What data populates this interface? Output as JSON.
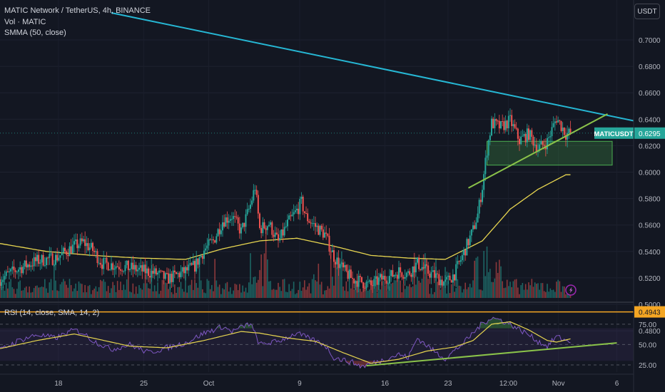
{
  "legend": {
    "title": "MATIC Network / TetherUS, 4h, BINANCE",
    "volume": "Vol · MATIC",
    "smma": "SMMA (50, close)",
    "rsi": "RSI (14, close, SMA, 14, 2)"
  },
  "currency_button": "USDT",
  "colors": {
    "background": "#131722",
    "up": "#26a69a",
    "down": "#ef5350",
    "smma": "#e8d650",
    "trendline_top": "#26b7d4",
    "trendline_support": "#8bc34a",
    "horizontal_level": "#f5a623",
    "rsi": "#7e57c2",
    "rsi_ma": "#e8d650",
    "zone": "#4caf50"
  },
  "chart_data": {
    "type": "candlestick",
    "symbol": "MATICUSDT",
    "interval": "4h",
    "price_axis": {
      "ticks": [
        "0.7000",
        "0.6800",
        "0.6600",
        "0.6400",
        "0.6200",
        "0.6000",
        "0.5800",
        "0.5600",
        "0.5400",
        "0.5200",
        "0.5000",
        "0.4800"
      ],
      "range": [
        0.476,
        0.722
      ]
    },
    "time_axis": {
      "ticks": [
        "18",
        "25",
        "Oct",
        "9",
        "16",
        "23",
        "12:00",
        "Nov",
        "6"
      ]
    },
    "price_keypoints": [
      {
        "day": 0,
        "price": 0.519
      },
      {
        "day": 2,
        "price": 0.527
      },
      {
        "day": 4,
        "price": 0.533
      },
      {
        "day": 6,
        "price": 0.535
      },
      {
        "day": 8,
        "price": 0.544
      },
      {
        "day": 9,
        "price": 0.547
      },
      {
        "day": 10,
        "price": 0.541
      },
      {
        "day": 11,
        "price": 0.531
      },
      {
        "day": 13,
        "price": 0.529
      },
      {
        "day": 15,
        "price": 0.526
      },
      {
        "day": 17,
        "price": 0.523
      },
      {
        "day": 18,
        "price": 0.519
      },
      {
        "day": 20,
        "price": 0.525
      },
      {
        "day": 21,
        "price": 0.529
      },
      {
        "day": 22,
        "price": 0.541
      },
      {
        "day": 23,
        "price": 0.548
      },
      {
        "day": 24,
        "price": 0.563
      },
      {
        "day": 25,
        "price": 0.567
      },
      {
        "day": 26,
        "price": 0.555
      },
      {
        "day": 27,
        "price": 0.575
      },
      {
        "day": 27.5,
        "price": 0.589
      },
      {
        "day": 28,
        "price": 0.557
      },
      {
        "day": 29,
        "price": 0.561
      },
      {
        "day": 30,
        "price": 0.547
      },
      {
        "day": 31,
        "price": 0.561
      },
      {
        "day": 32,
        "price": 0.571
      },
      {
        "day": 32.5,
        "price": 0.577
      },
      {
        "day": 33,
        "price": 0.566
      },
      {
        "day": 34,
        "price": 0.559
      },
      {
        "day": 35,
        "price": 0.553
      },
      {
        "day": 36,
        "price": 0.536
      },
      {
        "day": 37,
        "price": 0.526
      },
      {
        "day": 38,
        "price": 0.519
      },
      {
        "day": 39,
        "price": 0.517
      },
      {
        "day": 40,
        "price": 0.514
      },
      {
        "day": 41,
        "price": 0.519
      },
      {
        "day": 42,
        "price": 0.521
      },
      {
        "day": 43,
        "price": 0.525
      },
      {
        "day": 44,
        "price": 0.523
      },
      {
        "day": 45,
        "price": 0.531
      },
      {
        "day": 46,
        "price": 0.525
      },
      {
        "day": 47,
        "price": 0.521
      },
      {
        "day": 48,
        "price": 0.516
      },
      {
        "day": 49,
        "price": 0.523
      },
      {
        "day": 50,
        "price": 0.539
      },
      {
        "day": 51,
        "price": 0.556
      },
      {
        "day": 51.5,
        "price": 0.568
      },
      {
        "day": 52,
        "price": 0.589
      },
      {
        "day": 52.5,
        "price": 0.617
      },
      {
        "day": 53,
        "price": 0.637
      },
      {
        "day": 54,
        "price": 0.634
      },
      {
        "day": 55,
        "price": 0.639
      },
      {
        "day": 56,
        "price": 0.624
      },
      {
        "day": 57,
        "price": 0.629
      },
      {
        "day": 58,
        "price": 0.618
      },
      {
        "day": 59,
        "price": 0.623
      },
      {
        "day": 60,
        "price": 0.641
      },
      {
        "day": 61,
        "price": 0.629
      },
      {
        "day": 61.5,
        "price": 0.6295
      }
    ],
    "smma_keypoints": [
      {
        "day": 0,
        "price": 0.546
      },
      {
        "day": 5,
        "price": 0.54
      },
      {
        "day": 10,
        "price": 0.537
      },
      {
        "day": 15,
        "price": 0.535
      },
      {
        "day": 20,
        "price": 0.534
      },
      {
        "day": 24,
        "price": 0.542
      },
      {
        "day": 28,
        "price": 0.548
      },
      {
        "day": 32,
        "price": 0.55
      },
      {
        "day": 36,
        "price": 0.544
      },
      {
        "day": 40,
        "price": 0.537
      },
      {
        "day": 44,
        "price": 0.535
      },
      {
        "day": 48,
        "price": 0.534
      },
      {
        "day": 52,
        "price": 0.548
      },
      {
        "day": 55,
        "price": 0.572
      },
      {
        "day": 58,
        "price": 0.587
      },
      {
        "day": 61,
        "price": 0.598
      }
    ],
    "drawings": {
      "descending_trendline": {
        "from": {
          "day": 12.0,
          "price": 0.7205
        },
        "to": {
          "day": 67.5,
          "price": 0.64
        }
      },
      "ascending_support": {
        "from": {
          "day": 50.5,
          "price": 0.588
        },
        "to": {
          "day": 65.5,
          "price": 0.644
        }
      },
      "support_zone": {
        "day_from": 52.5,
        "day_to": 66.0,
        "price_low": 0.6053,
        "price_high": 0.6233
      },
      "horizontal_level": {
        "price": 0.4943
      }
    },
    "labels": {
      "symbol_label": "MATICUSDT",
      "last_price": "0.6295",
      "level_price": "0.4943"
    },
    "rsi": {
      "ticks": [
        "75.00",
        "50.00",
        "25.00"
      ],
      "range": [
        18,
        88
      ],
      "keypoints": [
        {
          "day": 0,
          "value": 43
        },
        {
          "day": 2,
          "value": 55
        },
        {
          "day": 4,
          "value": 62
        },
        {
          "day": 6,
          "value": 58
        },
        {
          "day": 8,
          "value": 68
        },
        {
          "day": 9,
          "value": 64
        },
        {
          "day": 10,
          "value": 55
        },
        {
          "day": 12,
          "value": 44
        },
        {
          "day": 14,
          "value": 50
        },
        {
          "day": 16,
          "value": 40
        },
        {
          "day": 18,
          "value": 46
        },
        {
          "day": 20,
          "value": 52
        },
        {
          "day": 22,
          "value": 64
        },
        {
          "day": 24,
          "value": 72
        },
        {
          "day": 25,
          "value": 66
        },
        {
          "day": 27,
          "value": 76
        },
        {
          "day": 28,
          "value": 50
        },
        {
          "day": 30,
          "value": 54
        },
        {
          "day": 32,
          "value": 64
        },
        {
          "day": 33,
          "value": 59
        },
        {
          "day": 35,
          "value": 50
        },
        {
          "day": 36,
          "value": 34
        },
        {
          "day": 38,
          "value": 28
        },
        {
          "day": 39,
          "value": 23
        },
        {
          "day": 41,
          "value": 30
        },
        {
          "day": 43,
          "value": 38
        },
        {
          "day": 44,
          "value": 34
        },
        {
          "day": 45,
          "value": 58
        },
        {
          "day": 47,
          "value": 40
        },
        {
          "day": 48,
          "value": 33
        },
        {
          "day": 50,
          "value": 52
        },
        {
          "day": 52,
          "value": 76
        },
        {
          "day": 53,
          "value": 83
        },
        {
          "day": 54,
          "value": 80
        },
        {
          "day": 55,
          "value": 75
        },
        {
          "day": 57,
          "value": 62
        },
        {
          "day": 58,
          "value": 54
        },
        {
          "day": 59,
          "value": 48
        },
        {
          "day": 60,
          "value": 60
        },
        {
          "day": 61,
          "value": 55
        },
        {
          "day": 61.5,
          "value": 54
        }
      ],
      "ma_keypoints": [
        {
          "day": 0,
          "value": 45
        },
        {
          "day": 4,
          "value": 55
        },
        {
          "day": 8,
          "value": 63
        },
        {
          "day": 10,
          "value": 58
        },
        {
          "day": 14,
          "value": 48
        },
        {
          "day": 18,
          "value": 46
        },
        {
          "day": 22,
          "value": 55
        },
        {
          "day": 26,
          "value": 66
        },
        {
          "day": 28,
          "value": 64
        },
        {
          "day": 31,
          "value": 58
        },
        {
          "day": 34,
          "value": 54
        },
        {
          "day": 37,
          "value": 40
        },
        {
          "day": 40,
          "value": 27
        },
        {
          "day": 43,
          "value": 32
        },
        {
          "day": 46,
          "value": 42
        },
        {
          "day": 49,
          "value": 47
        },
        {
          "day": 51,
          "value": 55
        },
        {
          "day": 53,
          "value": 75
        },
        {
          "day": 55,
          "value": 78
        },
        {
          "day": 57,
          "value": 68
        },
        {
          "day": 59,
          "value": 55
        },
        {
          "day": 60,
          "value": 53
        },
        {
          "day": 61.5,
          "value": 57
        }
      ],
      "trendline": {
        "from": {
          "day": 39.5,
          "value": 24
        },
        "to": {
          "day": 66.5,
          "value": 52
        }
      }
    }
  }
}
